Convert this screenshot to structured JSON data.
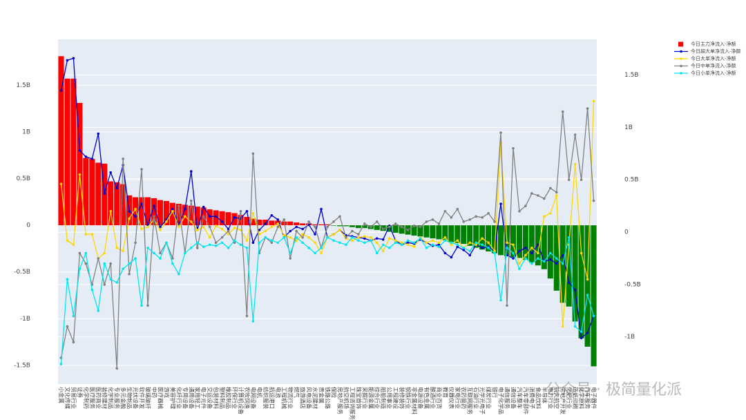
{
  "chart_data": {
    "type": "bar_line",
    "categories": [
      "小金属",
      "文化传媒",
      "贸易行业",
      "证券",
      "化学制药",
      "医疗服务",
      "医药商业",
      "装修建材",
      "化学制品",
      "专业服务",
      "多元金融",
      "生物制品",
      "光伏设备",
      "软件开发",
      "玻璃玻纤",
      "中药",
      "医疗器械",
      "游戏",
      "美容护理",
      "化纤行业",
      "专用设备",
      "通用设备",
      "家用轻工",
      "电子元件",
      "交运设备",
      "包装材料",
      "塑料制品",
      "橡胶制品",
      "环保行业",
      "计算机设备",
      "农牧饲渔",
      "电网设备",
      "电机",
      "纺织服装",
      "航运港口",
      "电池",
      "工程机械",
      "物流行业",
      "燃气",
      "旅游酒店",
      "风电设备",
      "水泥建材",
      "贵金属",
      "铁路公路",
      "保险",
      "房地产服务",
      "航空机场",
      "工程咨询服务",
      "珠宝首饰",
      "采掘行业",
      "能源金属",
      "综合行业",
      "船舶制造",
      "公用事业",
      "工程建设",
      "装修装饰",
      "钢铁行业",
      "非金属材料",
      "电源设备",
      "有色金属",
      "酿酒行业",
      "商业百货",
      "教育",
      "仪器仪表",
      "家电行业",
      "农药兽药",
      "互联网服务",
      "石油行业",
      "光学光电子",
      "煤炭行业",
      "银行",
      "电子化学品",
      "通信服务",
      "通信设备",
      "汽车整车",
      "汽车零部件",
      "消费电子",
      "食品饮料",
      "半导体",
      "电力行业",
      "航天航空",
      "房地产开发",
      "化肥行业",
      "造纸印刷",
      "化学原料",
      "汽车服务",
      "电子器件"
    ],
    "bar_series": {
      "name": "今日主力净流入-净额",
      "positive_color": "#ff0000",
      "negative_color": "#008000",
      "values": [
        1810000000.0,
        1570000000.0,
        1570000000.0,
        1310000000.0,
        720000000.0,
        710000000.0,
        670000000.0,
        660000000.0,
        470000000.0,
        460000000.0,
        440000000.0,
        320000000.0,
        300000000.0,
        300000000.0,
        300000000.0,
        290000000.0,
        270000000.0,
        260000000.0,
        240000000.0,
        230000000.0,
        220000000.0,
        210000000.0,
        200000000.0,
        190000000.0,
        170000000.0,
        160000000.0,
        150000000.0,
        140000000.0,
        130000000.0,
        110000000.0,
        90000000.0,
        70000000.0,
        60000000.0,
        60000000.0,
        50000000.0,
        50000000.0,
        40000000.0,
        40000000.0,
        30000000.0,
        20000000.0,
        20000000.0,
        10000000.0,
        10000000.0,
        10000000.0,
        -5000000.0,
        -10000000.0,
        -10000000.0,
        -20000000.0,
        -30000000.0,
        -30000000.0,
        -40000000.0,
        -50000000.0,
        -60000000.0,
        -70000000.0,
        -80000000.0,
        -90000000.0,
        -100000000.0,
        -110000000.0,
        -120000000.0,
        -130000000.0,
        -140000000.0,
        -150000000.0,
        -160000000.0,
        -180000000.0,
        -190000000.0,
        -200000000.0,
        -220000000.0,
        -240000000.0,
        -260000000.0,
        -280000000.0,
        -300000000.0,
        -320000000.0,
        -330000000.0,
        -340000000.0,
        -350000000.0,
        -370000000.0,
        -400000000.0,
        -430000000.0,
        -470000000.0,
        -570000000.0,
        -700000000.0,
        -830000000.0,
        -870000000.0,
        -1030000000.0,
        -1210000000.0,
        -1300000000.0,
        -1510000000.0
      ]
    },
    "series": [
      {
        "name": "今日超大单净流入-净额",
        "color": "#0000cd",
        "axis": "y2",
        "values": [
          1350000000.0,
          1640000000.0,
          1660000000.0,
          780000000.0,
          720000000.0,
          700000000.0,
          940000000.0,
          370000000.0,
          570000000.0,
          420000000.0,
          640000000.0,
          200000000.0,
          150000000.0,
          270000000.0,
          70000000.0,
          250000000.0,
          50000000.0,
          120000000.0,
          220000000.0,
          70000000.0,
          220000000.0,
          580000000.0,
          20000000.0,
          240000000.0,
          150000000.0,
          150000000.0,
          100000000.0,
          30000000.0,
          140000000.0,
          130000000.0,
          200000000.0,
          -100000000.0,
          20000000.0,
          80000000.0,
          160000000.0,
          120000000.0,
          -50000000.0,
          10000000.0,
          50000000.0,
          30000000.0,
          70000000.0,
          -20000000.0,
          220000000.0,
          -50000000.0,
          -20000000.0,
          20000000.0,
          -30000000.0,
          -40000000.0,
          -50000000.0,
          -60000000.0,
          -80000000.0,
          -60000000.0,
          -70000000.0,
          60000000.0,
          -80000000.0,
          -120000000.0,
          -100000000.0,
          -110000000.0,
          -70000000.0,
          -100000000.0,
          -130000000.0,
          -120000000.0,
          -200000000.0,
          -240000000.0,
          -140000000.0,
          -170000000.0,
          -220000000.0,
          -120000000.0,
          -150000000.0,
          -140000000.0,
          -180000000.0,
          270000000.0,
          -220000000.0,
          -250000000.0,
          -180000000.0,
          -150000000.0,
          -200000000.0,
          -120000000.0,
          -280000000.0,
          -260000000.0,
          -300000000.0,
          -220000000.0,
          -480000000.0,
          -550000000.0,
          -1010000000.0,
          -960000000.0,
          -800000000.0
        ]
      },
      {
        "name": "今日大单净流入-净额",
        "color": "#ffd700",
        "axis": "y2",
        "values": [
          460000000.0,
          -80000000.0,
          -120000000.0,
          550000000.0,
          -20000000.0,
          -20000000.0,
          -250000000.0,
          -200000000.0,
          200000000.0,
          -150000000.0,
          -180000000.0,
          130000000.0,
          220000000.0,
          30000000.0,
          50000000.0,
          120000000.0,
          20000000.0,
          100000000.0,
          200000000.0,
          50000000.0,
          150000000.0,
          100000000.0,
          20000000.0,
          50000000.0,
          -50000000.0,
          60000000.0,
          30000000.0,
          -20000000.0,
          40000000.0,
          20000000.0,
          -80000000.0,
          180000000.0,
          -20000000.0,
          10000000.0,
          50000000.0,
          80000000.0,
          -30000000.0,
          -50000000.0,
          -80000000.0,
          -20000000.0,
          -50000000.0,
          -100000000.0,
          -200000000.0,
          -50000000.0,
          -20000000.0,
          20000000.0,
          -60000000.0,
          -80000000.0,
          -50000000.0,
          -40000000.0,
          -50000000.0,
          -100000000.0,
          -180000000.0,
          -60000000.0,
          -80000000.0,
          -100000000.0,
          -120000000.0,
          -140000000.0,
          -50000000.0,
          -100000000.0,
          -80000000.0,
          -100000000.0,
          -50000000.0,
          -120000000.0,
          -80000000.0,
          -150000000.0,
          -100000000.0,
          -120000000.0,
          -60000000.0,
          -100000000.0,
          -180000000.0,
          850000000.0,
          -100000000.0,
          -120000000.0,
          -300000000.0,
          -220000000.0,
          -150000000.0,
          -200000000.0,
          150000000.0,
          180000000.0,
          350000000.0,
          -900000000.0,
          -120000000.0,
          650000000.0,
          -200000000.0,
          -450000000.0,
          1250000000.0
        ]
      },
      {
        "name": "今日中单净流入-净额",
        "color": "#808080",
        "axis": "y2",
        "values": [
          -1200000000.0,
          -900000000.0,
          -1050000000.0,
          -200000000.0,
          -300000000.0,
          -500000000.0,
          -250000000.0,
          -500000000.0,
          -300000000.0,
          -1300000000.0,
          700000000.0,
          -400000000.0,
          -100000000.0,
          600000000.0,
          -700000000.0,
          150000000.0,
          -200000000.0,
          -100000000.0,
          -250000000.0,
          250000000.0,
          -200000000.0,
          300000000.0,
          -150000000.0,
          150000000.0,
          50000000.0,
          -100000000.0,
          -50000000.0,
          10000000.0,
          -100000000.0,
          200000000.0,
          -800000000.0,
          750000000.0,
          -200000000.0,
          -50000000.0,
          -100000000.0,
          50000000.0,
          120000000.0,
          -250000000.0,
          10000000.0,
          -50000000.0,
          100000000.0,
          50000000.0,
          -150000000.0,
          50000000.0,
          100000000.0,
          150000000.0,
          -50000000.0,
          10000000.0,
          -20000000.0,
          80000000.0,
          50000000.0,
          100000000.0,
          30000000.0,
          50000000.0,
          80000000.0,
          50000000.0,
          20000000.0,
          60000000.0,
          50000000.0,
          100000000.0,
          120000000.0,
          80000000.0,
          200000000.0,
          140000000.0,
          220000000.0,
          100000000.0,
          120000000.0,
          150000000.0,
          140000000.0,
          180000000.0,
          100000000.0,
          950000000.0,
          -700000000.0,
          800000000.0,
          200000000.0,
          250000000.0,
          370000000.0,
          350000000.0,
          320000000.0,
          420000000.0,
          380000000.0,
          1150000000.0,
          500000000.0,
          930000000.0,
          500000000.0,
          1180000000.0,
          300000000.0
        ]
      },
      {
        "name": "今日小单净流入-净额",
        "color": "#00e5ee",
        "axis": "y2",
        "values": [
          -1260000000.0,
          -450000000.0,
          -800000000.0,
          -350000000.0,
          -200000000.0,
          -550000000.0,
          -750000000.0,
          -300000000.0,
          -450000000.0,
          -480000000.0,
          -350000000.0,
          -300000000.0,
          -250000000.0,
          -700000000.0,
          -150000000.0,
          -200000000.0,
          -250000000.0,
          -100000000.0,
          -300000000.0,
          -400000000.0,
          -200000000.0,
          -150000000.0,
          -100000000.0,
          -140000000.0,
          -120000000.0,
          -130000000.0,
          -100000000.0,
          -150000000.0,
          -80000000.0,
          -120000000.0,
          -150000000.0,
          -850000000.0,
          -100000000.0,
          -50000000.0,
          -80000000.0,
          -100000000.0,
          -50000000.0,
          -200000000.0,
          -50000000.0,
          -100000000.0,
          -150000000.0,
          -200000000.0,
          -150000000.0,
          -50000000.0,
          -80000000.0,
          -100000000.0,
          -120000000.0,
          -50000000.0,
          -80000000.0,
          -100000000.0,
          -80000000.0,
          -200000000.0,
          -120000000.0,
          -150000000.0,
          -100000000.0,
          -120000000.0,
          -80000000.0,
          -100000000.0,
          -60000000.0,
          -150000000.0,
          -120000000.0,
          -140000000.0,
          -80000000.0,
          -100000000.0,
          -120000000.0,
          -150000000.0,
          -180000000.0,
          -100000000.0,
          -120000000.0,
          -150000000.0,
          -200000000.0,
          -650000000.0,
          -150000000.0,
          -200000000.0,
          -350000000.0,
          -250000000.0,
          -300000000.0,
          -250000000.0,
          -280000000.0,
          -200000000.0,
          -250000000.0,
          -300000000.0,
          -50000000.0,
          -900000000.0,
          -950000000.0,
          -600000000.0,
          -800000000.0
        ]
      }
    ],
    "ylim": [
      -1700000000.0,
      1990000000.0
    ],
    "yticks": [
      {
        "value": -1500000000.0,
        "label": "-1.5B"
      },
      {
        "value": -1000000000.0,
        "label": "-1B"
      },
      {
        "value": -500000000.0,
        "label": "-0.5B"
      },
      0,
      {
        "value": 500000000.0,
        "label": "0.5B"
      },
      {
        "value": 1000000000.0,
        "label": "1B"
      },
      {
        "value": 1500000000.0,
        "label": "1.5B"
      }
    ],
    "y2lim": [
      -1450000000.0,
      1840000000.0
    ],
    "y2ticks": [
      {
        "value": -1000000000.0,
        "label": "-1B"
      },
      {
        "value": -500000000.0,
        "label": "-0.5B"
      },
      0,
      {
        "value": 500000000.0,
        "label": "0.5B"
      },
      {
        "value": 1000000000.0,
        "label": "1B"
      },
      {
        "value": 1500000000.0,
        "label": "1.5B"
      }
    ],
    "grid": true,
    "legend": "top-right",
    "background": "#e5ecf6",
    "watermark": "公众号 · 极简量化派"
  }
}
